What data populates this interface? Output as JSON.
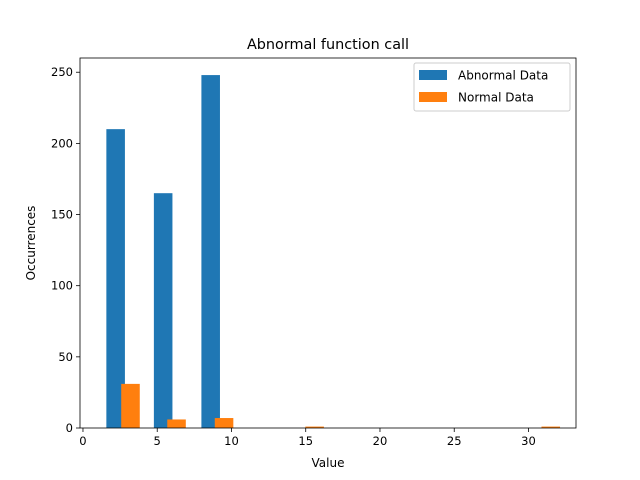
{
  "chart_data": {
    "type": "bar",
    "title": "Abnormal function call",
    "xlabel": "Value",
    "ylabel": "Occurrences",
    "xlim": [
      -0.2,
      33.2
    ],
    "ylim": [
      0,
      260
    ],
    "xticks": [
      0,
      5,
      10,
      15,
      20,
      25,
      30
    ],
    "yticks": [
      0,
      50,
      100,
      150,
      200,
      250
    ],
    "grid": false,
    "legend_position": "top-right",
    "bar_width": 1.25,
    "series": [
      {
        "name": "Abnormal Data",
        "color": "#1f77b4",
        "x": [
          2.2,
          5.4,
          8.6
        ],
        "values": [
          210,
          165,
          248
        ]
      },
      {
        "name": "Normal Data",
        "color": "#ff7f0e",
        "x": [
          3.2,
          6.3,
          9.5,
          15.6,
          31.5
        ],
        "values": [
          31,
          6,
          7,
          1,
          1
        ]
      }
    ]
  }
}
